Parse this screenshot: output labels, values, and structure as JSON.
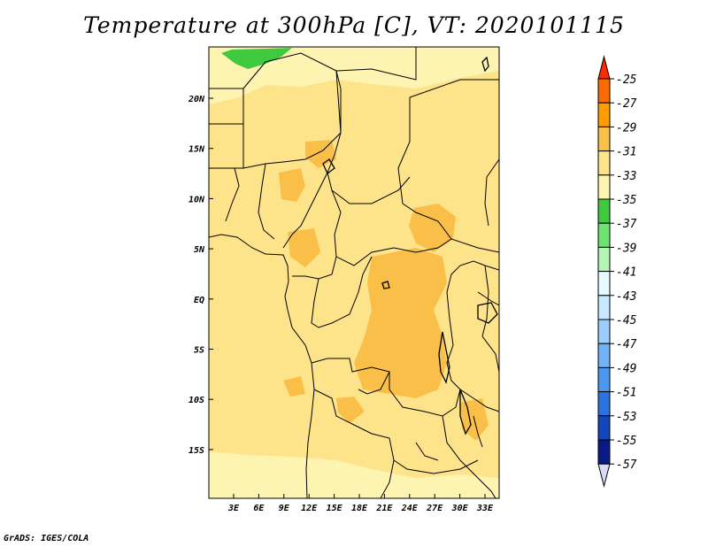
{
  "title": "Temperature at 300hPa [C], VT: 2020101115",
  "credit": "GrADS: IGES/COLA",
  "colors": {
    "background_field": "#fde38a",
    "warm_patch": "#f9bf48",
    "cool_band": "#fef4b2",
    "green": "#3ec93e",
    "border": "#000000"
  },
  "map": {
    "lon_labels": [
      "3E",
      "6E",
      "9E",
      "12E",
      "15E",
      "18E",
      "21E",
      "24E",
      "27E",
      "30E",
      "33E"
    ],
    "lat_labels": [
      "20N",
      "15N",
      "10N",
      "5N",
      "EQ",
      "5S",
      "10S",
      "15S"
    ]
  },
  "colorbar": {
    "labels": [
      "-25",
      "-27",
      "-29",
      "-31",
      "-33",
      "-35",
      "-37",
      "-39",
      "-41",
      "-43",
      "-45",
      "-47",
      "-49",
      "-51",
      "-53",
      "-55",
      "-57"
    ],
    "colors": [
      "#ff2800",
      "#ff6a00",
      "#ff9d00",
      "#f9bf48",
      "#fde38a",
      "#fef4b2",
      "#3ec93e",
      "#6fe36f",
      "#b3f5b3",
      "#e6fbff",
      "#c8e8ff",
      "#9dcdfc",
      "#72b2f7",
      "#4c97f0",
      "#2a72e0",
      "#1246bd",
      "#0a1a85",
      "#d9d9f5"
    ]
  }
}
